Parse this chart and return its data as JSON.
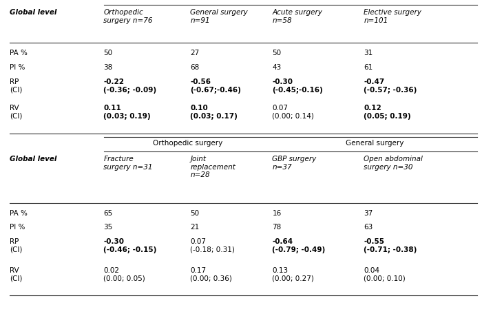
{
  "bg_color": "#ffffff",
  "cols": [
    0.02,
    0.215,
    0.395,
    0.565,
    0.755
  ],
  "fs": 7.5,
  "section1": {
    "header": {
      "col0": "Global level",
      "col1": "Orthopedic\nsurgery n=76",
      "col2": "General surgery\nn=91",
      "col3": "Acute surgery\nn=58",
      "col4": "Elective surgery\nn=101"
    },
    "rows": [
      {
        "label": "PA %",
        "values": [
          "50",
          "27",
          "50",
          "31"
        ],
        "bold": [
          false,
          false,
          false,
          false
        ]
      },
      {
        "label": "PI %",
        "values": [
          "38",
          "68",
          "43",
          "61"
        ],
        "bold": [
          false,
          false,
          false,
          false
        ]
      },
      {
        "label": "RP\n(CI)",
        "values": [
          "-0.22\n(-0.36; -0.09)",
          "-0.56\n(-0.67;-0.46)",
          "-0.30\n(-0.45;-0.16)",
          "-0.47\n(-0.57; -0.36)"
        ],
        "bold": [
          true,
          true,
          true,
          true
        ]
      },
      {
        "label": "RV\n(CI)",
        "values": [
          "0.11\n(0.03; 0.19)",
          "0.10\n(0.03; 0.17)",
          "0.07\n(0.00; 0.14)",
          "0.12\n(0.05; 0.19)"
        ],
        "bold": [
          true,
          true,
          false,
          true
        ]
      }
    ]
  },
  "section2": {
    "subheader_left": "Orthopedic surgery",
    "subheader_right": "General surgery",
    "header": {
      "col0": "Global level",
      "col1": "Fracture\nsurgery n=31",
      "col2": "Joint\nreplacement\nn=28",
      "col3": "GBP surgery\nn=37",
      "col4": "Open abdominal\nsurgery n=30"
    },
    "rows": [
      {
        "label": "PA %",
        "values": [
          "65",
          "50",
          "16",
          "37"
        ],
        "bold": [
          false,
          false,
          false,
          false
        ]
      },
      {
        "label": "PI %",
        "values": [
          "35",
          "21",
          "78",
          "63"
        ],
        "bold": [
          false,
          false,
          false,
          false
        ]
      },
      {
        "label": "RP\n(CI)",
        "values": [
          "-0.30\n(-0.46; -0.15)",
          "0.07\n(-0.18; 0.31)",
          "-0.64\n(-0.79; -0.49)",
          "-0.55\n(-0.71; -0.38)"
        ],
        "bold": [
          true,
          false,
          true,
          true
        ]
      },
      {
        "label": "RV\n(CI)",
        "values": [
          "0.02\n(0.00; 0.05)",
          "0.17\n(0.00; 0.36)",
          "0.13\n(0.00; 0.27)",
          "0.04\n(0.00; 0.10)"
        ],
        "bold": [
          false,
          false,
          false,
          false
        ]
      }
    ]
  }
}
